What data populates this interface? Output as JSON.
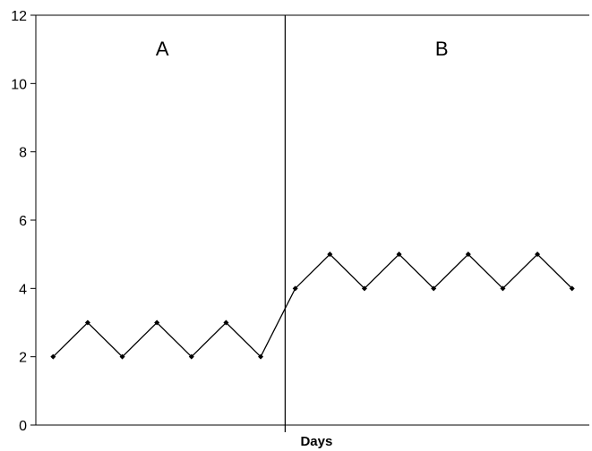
{
  "chart_data": {
    "type": "line",
    "title": "",
    "xlabel": "Days",
    "ylabel": "",
    "ylim": [
      0,
      12
    ],
    "yticks": [
      0,
      2,
      4,
      6,
      8,
      10,
      12
    ],
    "grid": false,
    "legend": "none",
    "x": [
      1,
      2,
      3,
      4,
      5,
      6,
      7,
      8,
      9,
      10,
      11,
      12,
      13,
      14,
      15,
      16
    ],
    "series": [
      {
        "values": [
          2,
          3,
          2,
          3,
          2,
          3,
          2,
          4,
          5,
          4,
          5,
          4,
          5,
          4,
          5,
          4
        ]
      }
    ],
    "phase_change_after_x": 7,
    "phases": [
      {
        "label": "A"
      },
      {
        "label": "B"
      }
    ],
    "line_color": "#000000"
  }
}
